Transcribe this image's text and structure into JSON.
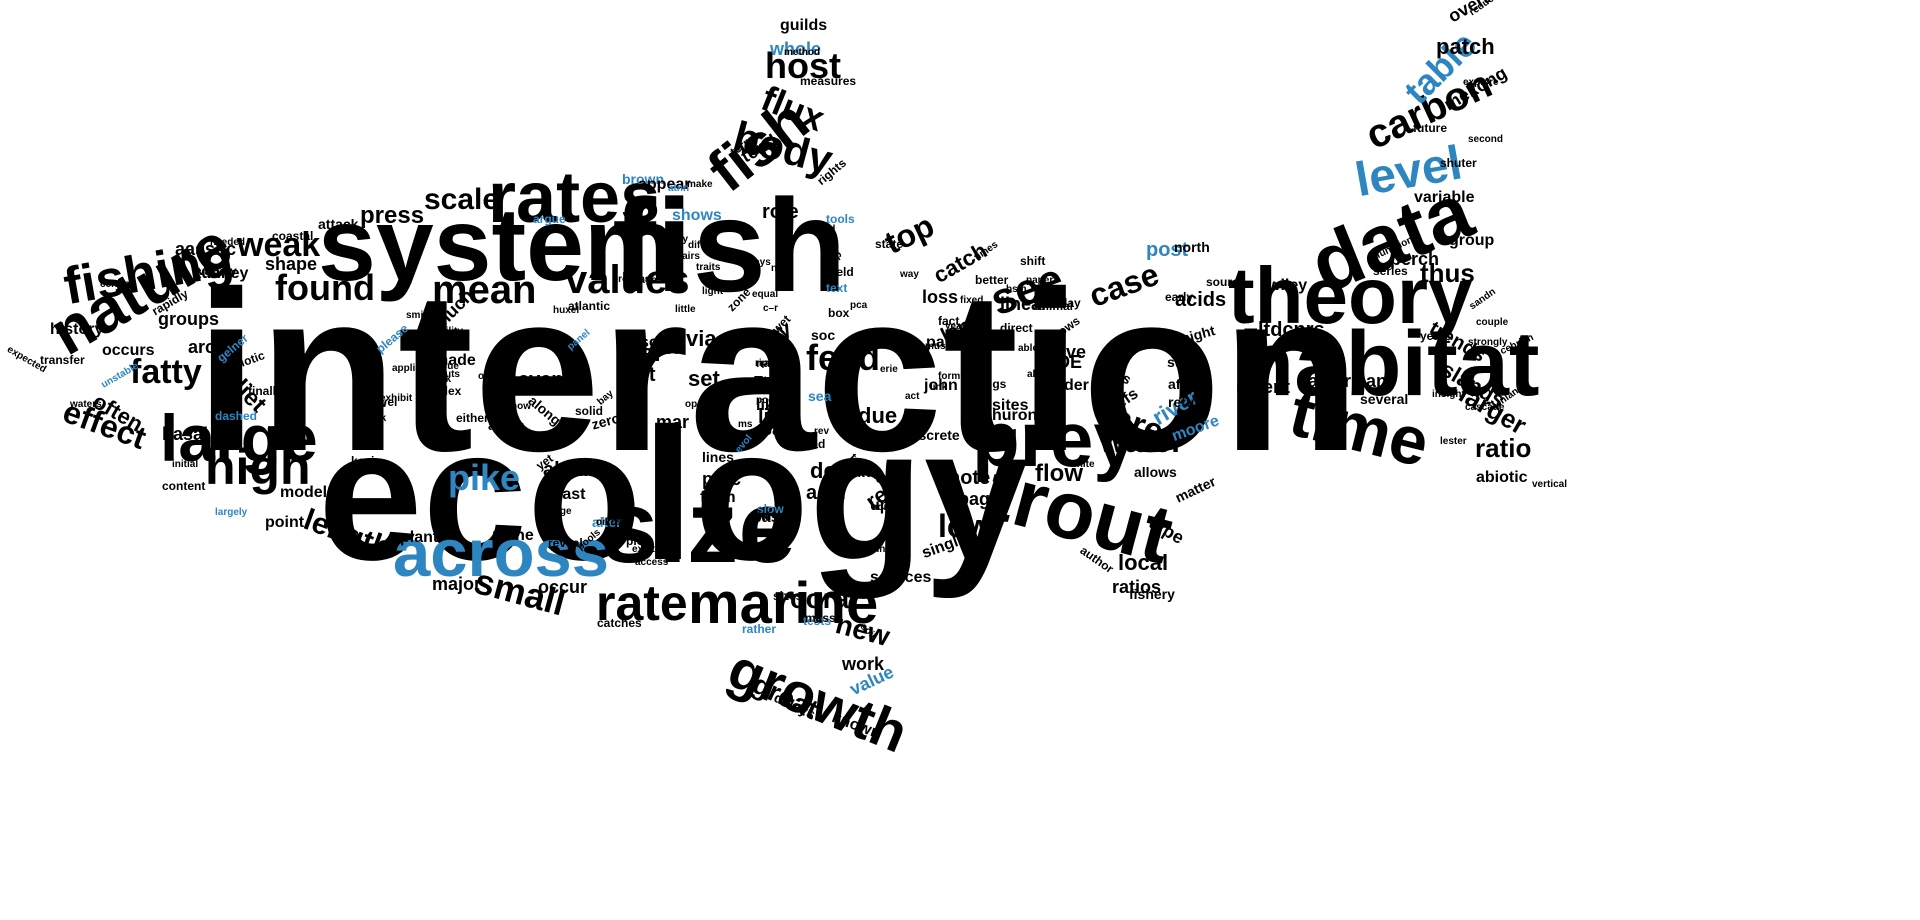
{
  "colors": {
    "background": "#ffffff",
    "primary": "#000000",
    "accent": "#2e86c1"
  },
  "words": [
    {
      "text": "interaction",
      "accent": false
    },
    {
      "text": "ecology",
      "accent": false
    },
    {
      "text": "system",
      "accent": false
    },
    {
      "text": "fish",
      "accent": false
    },
    {
      "text": "size",
      "accent": false
    },
    {
      "text": "across",
      "accent": true
    },
    {
      "text": "rates",
      "accent": false
    },
    {
      "text": "habitat",
      "accent": false
    },
    {
      "text": "theory",
      "accent": false
    },
    {
      "text": "data",
      "accent": false
    },
    {
      "text": "trout",
      "accent": false
    },
    {
      "text": "prey",
      "accent": false
    },
    {
      "text": "time",
      "accent": false
    },
    {
      "text": "large",
      "accent": false
    },
    {
      "text": "nature",
      "accent": false
    },
    {
      "text": "fishing",
      "accent": false
    },
    {
      "text": "marine",
      "accent": false
    },
    {
      "text": "rate",
      "accent": false
    },
    {
      "text": "growth",
      "accent": false
    },
    {
      "text": "fish",
      "accent": false
    },
    {
      "text": "high",
      "accent": false
    },
    {
      "text": "values",
      "accent": false
    },
    {
      "text": "mean",
      "accent": false
    },
    {
      "text": "found",
      "accent": false
    },
    {
      "text": "level",
      "accent": true
    },
    {
      "text": "see",
      "accent": false
    },
    {
      "text": "body",
      "accent": false
    },
    {
      "text": "flux",
      "accent": false
    },
    {
      "text": "host",
      "accent": false
    },
    {
      "text": "carbon",
      "accent": false
    },
    {
      "text": "table",
      "accent": true
    },
    {
      "text": "pike",
      "accent": true
    },
    {
      "text": "small",
      "accent": false
    },
    {
      "text": "fatty",
      "accent": false
    },
    {
      "text": "effect",
      "accent": false
    },
    {
      "text": "weak",
      "accent": false
    },
    {
      "text": "scale",
      "accent": false
    },
    {
      "text": "press",
      "accent": false
    },
    {
      "text": "top",
      "accent": false
    },
    {
      "text": "feed",
      "accent": false
    },
    {
      "text": "case",
      "accent": false
    },
    {
      "text": "area",
      "accent": false
    },
    {
      "text": "water",
      "accent": false
    },
    {
      "text": "low",
      "accent": false
    },
    {
      "text": "length",
      "accent": false
    },
    {
      "text": "new",
      "accent": false
    },
    {
      "text": "coral",
      "accent": false
    },
    {
      "text": "great",
      "accent": false
    },
    {
      "text": "ratio",
      "accent": false
    },
    {
      "text": "larger",
      "accent": false
    },
    {
      "text": "trends",
      "accent": false
    },
    {
      "text": "islands",
      "accent": false
    },
    {
      "text": "patch",
      "accent": false
    },
    {
      "text": "mekong",
      "accent": false
    },
    {
      "text": "thus",
      "accent": false
    },
    {
      "text": "diet",
      "accent": false
    },
    {
      "text": "often",
      "accent": false
    },
    {
      "text": "real",
      "accent": false
    },
    {
      "text": "test",
      "accent": false
    },
    {
      "text": "set",
      "accent": false
    },
    {
      "text": "via",
      "accent": false
    },
    {
      "text": "doi",
      "accent": false
    },
    {
      "text": "acid",
      "accent": false
    },
    {
      "text": "role",
      "accent": false
    },
    {
      "text": "reef",
      "accent": false
    },
    {
      "text": "flow",
      "accent": false
    },
    {
      "text": "note",
      "accent": false
    },
    {
      "text": "page",
      "accent": false
    },
    {
      "text": "local",
      "accent": false
    },
    {
      "text": "ratios",
      "accent": false
    },
    {
      "text": "river",
      "accent": true
    },
    {
      "text": "moore",
      "accent": true
    },
    {
      "text": "post",
      "accent": true
    },
    {
      "text": "acids",
      "accent": false
    },
    {
      "text": "recent",
      "accent": false
    },
    {
      "text": "american",
      "accent": false
    },
    {
      "text": "whole",
      "accent": true
    },
    {
      "text": "guilds",
      "accent": false
    },
    {
      "text": "shows",
      "accent": true
    },
    {
      "text": "brown",
      "accent": true
    },
    {
      "text": "appear",
      "accent": false
    },
    {
      "text": "tend",
      "accent": false
    },
    {
      "text": "value",
      "accent": true
    },
    {
      "text": "known",
      "accent": false
    },
    {
      "text": "delays",
      "accent": false
    },
    {
      "text": "work",
      "accent": false
    },
    {
      "text": "major",
      "accent": false
    },
    {
      "text": "occur",
      "accent": false
    },
    {
      "text": "shape",
      "accent": false
    },
    {
      "text": "aassoc",
      "accent": false
    },
    {
      "text": "tunney",
      "accent": false
    },
    {
      "text": "groups",
      "accent": false
    },
    {
      "text": "history",
      "accent": false
    },
    {
      "text": "arctic",
      "accent": false
    },
    {
      "text": "occurs",
      "accent": false
    },
    {
      "text": "basal",
      "accent": false
    },
    {
      "text": "point",
      "accent": false
    },
    {
      "text": "model",
      "accent": false
    },
    {
      "text": "plant",
      "accent": false
    },
    {
      "text": "niche",
      "accent": false
    },
    {
      "text": "algal",
      "accent": false
    },
    {
      "text": "least",
      "accent": false
    },
    {
      "text": "even",
      "accent": false
    },
    {
      "text": "Julia",
      "accent": false
    },
    {
      "text": "made",
      "accent": false
    },
    {
      "text": "much",
      "accent": false
    },
    {
      "text": "sons",
      "accent": false
    },
    {
      "text": "bcr",
      "accent": false
    },
    {
      "text": "mar",
      "accent": false
    },
    {
      "text": "proc",
      "accent": false
    },
    {
      "text": "form",
      "accent": false
    },
    {
      "text": "lines",
      "accent": false
    },
    {
      "text": "key",
      "accent": false
    },
    {
      "text": "δn",
      "accent": false
    },
    {
      "text": "like",
      "accent": false
    },
    {
      "text": "life",
      "accent": false
    },
    {
      "text": "sap",
      "accent": false
    },
    {
      "text": "due",
      "accent": false
    },
    {
      "text": "basin",
      "accent": false
    },
    {
      "text": "upon",
      "accent": false
    },
    {
      "text": "catch",
      "accent": false
    },
    {
      "text": "loss",
      "accent": false
    },
    {
      "text": "linear",
      "accent": false
    },
    {
      "text": "long",
      "accent": false
    },
    {
      "text": "part",
      "accent": false
    },
    {
      "text": "john",
      "accent": false
    },
    {
      "text": "ODE",
      "accent": false
    },
    {
      "text": "drive",
      "accent": false
    },
    {
      "text": "order",
      "accent": false
    },
    {
      "text": "huron",
      "accent": false
    },
    {
      "text": "sites",
      "accent": false
    },
    {
      "text": "single",
      "accent": false
    },
    {
      "text": "sources",
      "accent": false
    },
    {
      "text": "type",
      "accent": false
    },
    {
      "text": "matter",
      "accent": false
    },
    {
      "text": "fishery",
      "accent": false
    },
    {
      "text": "ltdcnrs",
      "accent": false
    },
    {
      "text": "wiley",
      "accent": false
    },
    {
      "text": "north",
      "accent": false
    },
    {
      "text": "perch",
      "accent": false
    },
    {
      "text": "variable",
      "accent": false
    },
    {
      "text": "group",
      "accent": false
    },
    {
      "text": "abiotic",
      "accent": false
    },
    {
      "text": "several",
      "accent": false
    },
    {
      "text": "allows",
      "accent": false
    },
    {
      "text": "cases",
      "accent": false
    },
    {
      "text": "stage",
      "accent": false
    },
    {
      "text": "affect",
      "accent": false
    },
    {
      "text": "return",
      "accent": false
    },
    {
      "text": "might",
      "accent": false
    },
    {
      "text": "reefs",
      "accent": false
    },
    {
      "text": "author",
      "accent": false
    },
    {
      "text": "overall",
      "accent": false
    },
    {
      "text": "sea",
      "accent": true
    },
    {
      "text": "tests",
      "accent": true
    },
    {
      "text": "rather",
      "accent": true
    },
    {
      "text": "slow",
      "accent": true
    },
    {
      "text": "alter",
      "accent": true
    },
    {
      "text": "dashed",
      "accent": true
    },
    {
      "text": "gelner",
      "accent": true
    },
    {
      "text": "please",
      "accent": true
    },
    {
      "text": "unstable",
      "accent": true
    },
    {
      "text": "argue",
      "accent": true
    },
    {
      "text": "tools",
      "accent": true
    },
    {
      "text": "text",
      "accent": true
    },
    {
      "text": "largely",
      "accent": true
    },
    {
      "text": "panel",
      "accent": true
    },
    {
      "text": "evol",
      "accent": true
    },
    {
      "text": "atnn",
      "accent": true
    },
    {
      "text": "attack",
      "accent": false
    },
    {
      "text": "coastal",
      "accent": false
    },
    {
      "text": "variety",
      "accent": false
    },
    {
      "text": "needed",
      "accent": false
    },
    {
      "text": "central",
      "accent": false
    },
    {
      "text": "rapidly",
      "accent": false
    },
    {
      "text": "transfer",
      "accent": false
    },
    {
      "text": "expected",
      "accent": false
    },
    {
      "text": "finally",
      "accent": false
    },
    {
      "text": "biotic",
      "accent": false
    },
    {
      "text": "waters",
      "accent": false
    },
    {
      "text": "kevin",
      "accent": false
    },
    {
      "text": "power",
      "accent": false
    },
    {
      "text": "content",
      "accent": false
    },
    {
      "text": "initial",
      "accent": false
    },
    {
      "text": "index",
      "accent": false
    },
    {
      "text": "york",
      "accent": false
    },
    {
      "text": "either",
      "accent": false
    },
    {
      "text": "areas",
      "accent": false
    },
    {
      "text": "zero",
      "accent": false
    },
    {
      "text": "solid",
      "accent": false
    },
    {
      "text": "along",
      "accent": false
    },
    {
      "text": "catches",
      "accent": false
    },
    {
      "text": "mass",
      "accent": false
    },
    {
      "text": "sizes",
      "accent": false
    },
    {
      "text": "tonle",
      "accent": false
    },
    {
      "text": "holt",
      "accent": false
    },
    {
      "text": "state",
      "accent": false
    },
    {
      "text": "field",
      "accent": false
    },
    {
      "text": "box",
      "accent": false
    },
    {
      "text": "soc",
      "accent": false
    },
    {
      "text": "acad",
      "accent": false
    },
    {
      "text": "dai",
      "accent": false
    },
    {
      "text": "natl",
      "accent": false
    },
    {
      "text": "pool",
      "accent": false
    },
    {
      "text": "discrete",
      "accent": false
    },
    {
      "text": "terms",
      "accent": false
    },
    {
      "text": "rights",
      "accent": false
    },
    {
      "text": "measures",
      "accent": false
    },
    {
      "text": "method",
      "accent": false
    },
    {
      "text": "reduce",
      "accent": false
    },
    {
      "text": "explore",
      "accent": false
    },
    {
      "text": "second",
      "accent": false
    },
    {
      "text": "shuter",
      "accent": false
    },
    {
      "text": "future",
      "accent": false
    },
    {
      "text": "series",
      "accent": false
    },
    {
      "text": "functions",
      "accent": false
    },
    {
      "text": "sandn",
      "accent": false
    },
    {
      "text": "couple",
      "accent": false
    },
    {
      "text": "years",
      "accent": false
    },
    {
      "text": "strongly",
      "accent": false
    },
    {
      "text": "cebrian",
      "accent": false
    },
    {
      "text": "insight",
      "accent": false
    },
    {
      "text": "inland",
      "accent": false
    },
    {
      "text": "lester",
      "accent": false
    },
    {
      "text": "cascade",
      "accent": false
    },
    {
      "text": "vertical",
      "accent": false
    },
    {
      "text": "source",
      "accent": false
    },
    {
      "text": "early",
      "accent": false
    },
    {
      "text": "direct",
      "accent": false
    },
    {
      "text": "flows",
      "accent": false
    },
    {
      "text": "animal",
      "accent": false
    },
    {
      "text": "delay",
      "accent": false
    },
    {
      "text": "shift",
      "accent": false
    },
    {
      "text": "paper",
      "accent": false
    },
    {
      "text": "fixed",
      "accent": false
    },
    {
      "text": "bsm",
      "accent": false
    },
    {
      "text": "able",
      "accent": false
    },
    {
      "text": "allow",
      "accent": false
    },
    {
      "text": "figs",
      "accent": false
    },
    {
      "text": "forms",
      "accent": false
    },
    {
      "text": "link",
      "accent": false
    },
    {
      "text": "full",
      "accent": false
    },
    {
      "text": "cycle",
      "accent": false
    },
    {
      "text": "aquat",
      "accent": false
    },
    {
      "text": "cycling",
      "accent": false
    },
    {
      "text": "soil",
      "accent": false
    },
    {
      "text": "erie",
      "accent": false
    },
    {
      "text": "act",
      "accent": false
    },
    {
      "text": "four",
      "accent": false
    },
    {
      "text": "fact",
      "accent": false
    },
    {
      "text": "year",
      "accent": false
    },
    {
      "text": "must",
      "accent": false
    },
    {
      "text": "better",
      "accent": false
    },
    {
      "text": "times",
      "accent": false
    },
    {
      "text": "white",
      "accent": false
    },
    {
      "text": "way",
      "accent": false
    },
    {
      "text": "pca",
      "accent": false
    },
    {
      "text": "rev",
      "accent": false
    },
    {
      "text": "ms",
      "accent": false
    },
    {
      "text": "eds",
      "accent": false
    },
    {
      "text": "rip",
      "accent": false
    },
    {
      "text": "unit",
      "accent": false
    },
    {
      "text": "c–r",
      "accent": false
    },
    {
      "text": "zone",
      "accent": false
    },
    {
      "text": "wet",
      "accent": false
    },
    {
      "text": "equal",
      "accent": false
    },
    {
      "text": "near",
      "accent": false
    },
    {
      "text": "days",
      "accent": false
    },
    {
      "text": "need",
      "accent": false
    },
    {
      "text": "help",
      "accent": false
    },
    {
      "text": "little",
      "accent": false
    },
    {
      "text": "light",
      "accent": false
    },
    {
      "text": "traits",
      "accent": false
    },
    {
      "text": "pairs",
      "accent": false
    },
    {
      "text": "differ",
      "accent": false
    },
    {
      "text": "pauly",
      "accent": false
    },
    {
      "text": "cage",
      "accent": false
    },
    {
      "text": "process",
      "accent": false
    },
    {
      "text": "atlantic",
      "accent": false
    },
    {
      "text": "huxel",
      "accent": false
    },
    {
      "text": "make",
      "accent": false
    },
    {
      "text": "ability",
      "accent": false
    },
    {
      "text": "smith",
      "accent": false
    },
    {
      "text": "world",
      "accent": false
    },
    {
      "text": "inputs",
      "accent": false
    },
    {
      "text": "applied",
      "accent": false
    },
    {
      "text": "exhibit",
      "accent": false
    },
    {
      "text": "novel",
      "accent": false
    },
    {
      "text": "curve",
      "accent": false
    },
    {
      "text": "click",
      "accent": false
    },
    {
      "text": "tissue",
      "accent": false
    },
    {
      "text": "ocean",
      "accent": false
    },
    {
      "text": "clear",
      "accent": false
    },
    {
      "text": "open",
      "accent": false
    },
    {
      "text": "bay",
      "accent": false
    },
    {
      "text": "now",
      "accent": false
    },
    {
      "text": "yet",
      "accent": false
    },
    {
      "text": "pools",
      "accent": false
    },
    {
      "text": "reveal",
      "accent": false
    },
    {
      "text": "plos",
      "accent": false
    },
    {
      "text": "exist",
      "accent": false
    },
    {
      "text": "access",
      "accent": false
    },
    {
      "text": "oikos",
      "accent": false
    },
    {
      "text": "forage",
      "accent": false
    }
  ]
}
